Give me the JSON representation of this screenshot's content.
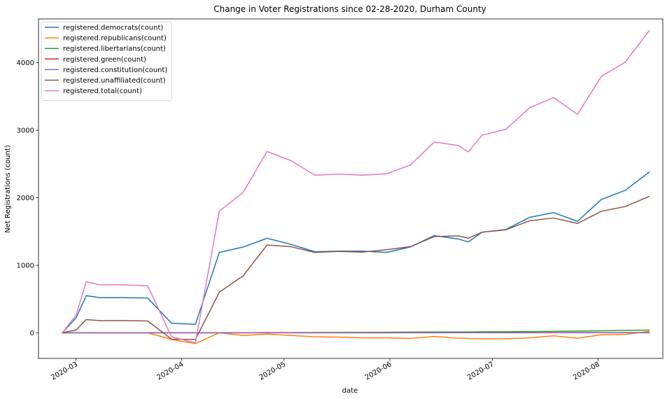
{
  "chart_data": {
    "type": "line",
    "title": "Change in Voter Registrations since 02-28-2020, Durham County",
    "xlabel": "date",
    "ylabel": "Net Registrations (count)",
    "x_type": "date",
    "xlim": [
      "2020-02-19",
      "2020-08-20"
    ],
    "ylim": [
      -380,
      4650
    ],
    "xticks": [
      {
        "date": "2020-03-01",
        "label": "2020-03"
      },
      {
        "date": "2020-04-01",
        "label": "2020-04"
      },
      {
        "date": "2020-05-01",
        "label": "2020-05"
      },
      {
        "date": "2020-06-01",
        "label": "2020-06"
      },
      {
        "date": "2020-07-01",
        "label": "2020-07"
      },
      {
        "date": "2020-08-01",
        "label": "2020-08"
      }
    ],
    "yticks": [
      0,
      1000,
      2000,
      3000,
      4000
    ],
    "legend_position": "upper-left",
    "x": [
      "2020-02-26",
      "2020-03-01",
      "2020-03-04",
      "2020-03-08",
      "2020-03-15",
      "2020-03-22",
      "2020-03-29",
      "2020-04-05",
      "2020-04-12",
      "2020-04-19",
      "2020-04-26",
      "2020-05-03",
      "2020-05-10",
      "2020-05-17",
      "2020-05-24",
      "2020-05-31",
      "2020-06-07",
      "2020-06-14",
      "2020-06-21",
      "2020-06-24",
      "2020-06-28",
      "2020-07-05",
      "2020-07-12",
      "2020-07-19",
      "2020-07-26",
      "2020-08-02",
      "2020-08-09",
      "2020-08-16"
    ],
    "series": [
      {
        "name": "registered.democrats(count)",
        "color": "#1f77b4",
        "values": [
          0,
          220,
          550,
          520,
          520,
          515,
          140,
          125,
          1190,
          1270,
          1400,
          1310,
          1200,
          1210,
          1210,
          1190,
          1270,
          1440,
          1390,
          1345,
          1490,
          1530,
          1710,
          1780,
          1650,
          1975,
          2110,
          2380
        ]
      },
      {
        "name": "registered.republicans(count)",
        "color": "#ff7f0e",
        "values": [
          0,
          0,
          0,
          0,
          0,
          0,
          -100,
          -160,
          0,
          -40,
          -20,
          -40,
          -60,
          -65,
          -75,
          -75,
          -85,
          -55,
          -80,
          -85,
          -90,
          -90,
          -75,
          -45,
          -80,
          -30,
          -25,
          20
        ]
      },
      {
        "name": "registered.libertarians(count)",
        "color": "#2ca02c",
        "values": [
          0,
          0,
          0,
          0,
          0,
          0,
          0,
          0,
          0,
          0,
          2,
          3,
          4,
          5,
          6,
          8,
          10,
          12,
          12,
          12,
          14,
          16,
          18,
          22,
          24,
          30,
          35,
          40
        ]
      },
      {
        "name": "registered.green(count)",
        "color": "#d62728",
        "values": [
          0,
          0,
          0,
          0,
          0,
          0,
          0,
          0,
          0,
          0,
          0,
          0,
          0,
          0,
          0,
          0,
          1,
          1,
          1,
          1,
          1,
          1,
          2,
          2,
          2,
          2,
          2,
          3
        ]
      },
      {
        "name": "registered.constitution(count)",
        "color": "#9467bd",
        "values": [
          0,
          0,
          0,
          0,
          0,
          0,
          0,
          0,
          0,
          0,
          0,
          0,
          0,
          0,
          0,
          0,
          0,
          0,
          0,
          0,
          0,
          0,
          0,
          0,
          0,
          0,
          0,
          0
        ]
      },
      {
        "name": "registered.unaffiliated(count)",
        "color": "#8c564b",
        "values": [
          0,
          40,
          195,
          180,
          180,
          175,
          -95,
          -100,
          600,
          845,
          1300,
          1275,
          1190,
          1205,
          1195,
          1230,
          1275,
          1425,
          1435,
          1400,
          1490,
          1525,
          1660,
          1700,
          1620,
          1800,
          1870,
          2020
        ]
      },
      {
        "name": "registered.total(count)",
        "color": "#e377c2",
        "values": [
          0,
          260,
          755,
          710,
          710,
          695,
          -60,
          -150,
          1800,
          2080,
          2685,
          2550,
          2335,
          2350,
          2335,
          2355,
          2485,
          2825,
          2775,
          2680,
          2925,
          3015,
          3335,
          3485,
          3235,
          3800,
          4010,
          4475
        ]
      }
    ]
  }
}
